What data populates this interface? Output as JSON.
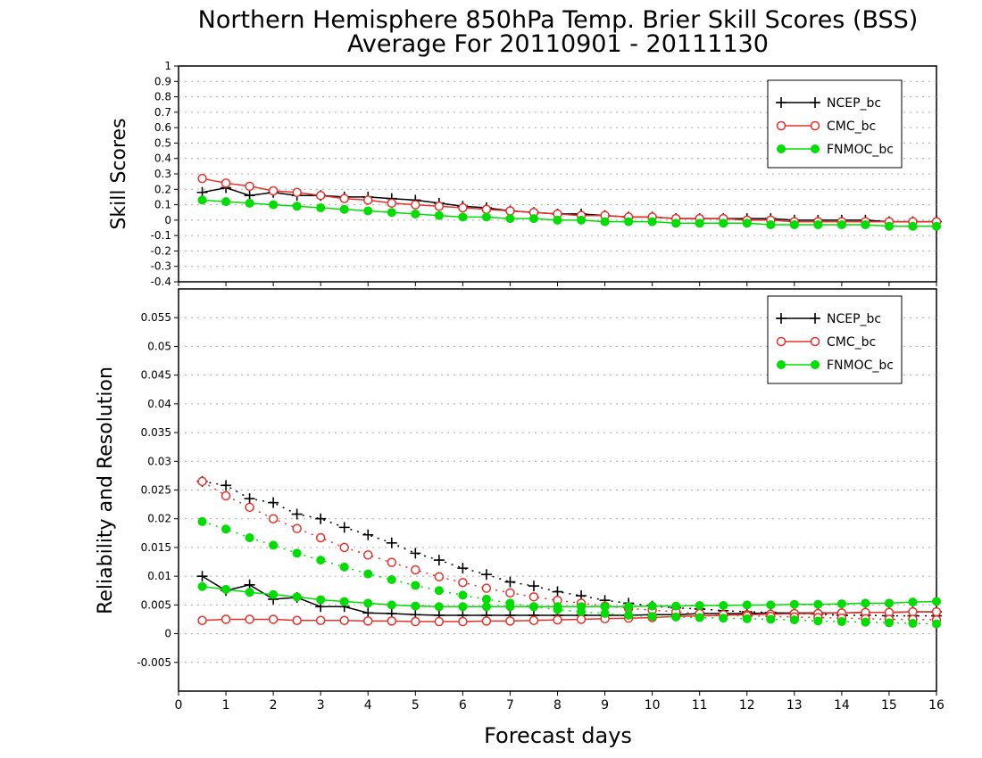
{
  "title_line1": "Northern Hemisphere 850hPa Temp. Brier Skill Scores (BSS)",
  "title_line2": "Average For 20110901 - 20111130",
  "xlabel": "Forecast days",
  "colors": {
    "NCEP_bc": "#000000",
    "CMC_bc": "#e8302a",
    "FNMOC_bc": "#00dd00"
  },
  "chart_data": [
    {
      "type": "line",
      "panel": "top",
      "ylabel": "Skill Scores",
      "ylim": [
        -0.4,
        1.0
      ],
      "xlim": [
        0,
        16
      ],
      "yticks": [
        "-0.4",
        "-0.3",
        "-0.2",
        "-0.1",
        "0",
        "0.1",
        "0.2",
        "0.3",
        "0.4",
        "0.5",
        "0.6",
        "0.7",
        "0.8",
        "0.9",
        "1"
      ],
      "xticks": [
        "0",
        "1",
        "2",
        "3",
        "4",
        "5",
        "6",
        "7",
        "8",
        "9",
        "10",
        "11",
        "12",
        "13",
        "14",
        "15",
        "16"
      ],
      "grid": true,
      "legend_position": "top-right",
      "x": [
        0.5,
        1,
        1.5,
        2,
        2.5,
        3,
        3.5,
        4,
        4.5,
        5,
        5.5,
        6,
        6.5,
        7,
        7.5,
        8,
        8.5,
        9,
        9.5,
        10,
        10.5,
        11,
        11.5,
        12,
        12.5,
        13,
        13.5,
        14,
        14.5,
        15,
        15.5,
        16
      ],
      "series": [
        {
          "name": "NCEP_bc",
          "style": "solid",
          "marker": "plus",
          "values": [
            0.18,
            0.21,
            0.16,
            0.18,
            0.16,
            0.16,
            0.15,
            0.15,
            0.14,
            0.13,
            0.11,
            0.09,
            0.08,
            0.06,
            0.05,
            0.04,
            0.04,
            0.03,
            0.02,
            0.02,
            0.01,
            0.01,
            0.01,
            0.01,
            0.01,
            0.0,
            0.0,
            0.0,
            0.0,
            -0.01,
            -0.01,
            -0.01
          ]
        },
        {
          "name": "CMC_bc",
          "style": "solid",
          "marker": "open-circle",
          "values": [
            0.27,
            0.24,
            0.22,
            0.19,
            0.18,
            0.16,
            0.14,
            0.13,
            0.11,
            0.1,
            0.09,
            0.08,
            0.07,
            0.06,
            0.05,
            0.04,
            0.03,
            0.03,
            0.02,
            0.02,
            0.01,
            0.01,
            0.01,
            0.0,
            0.0,
            -0.01,
            -0.01,
            -0.01,
            -0.01,
            -0.01,
            -0.01,
            -0.01
          ]
        },
        {
          "name": "FNMOC_bc",
          "style": "solid",
          "marker": "filled-circle",
          "values": [
            0.13,
            0.12,
            0.11,
            0.1,
            0.09,
            0.08,
            0.07,
            0.06,
            0.05,
            0.04,
            0.03,
            0.02,
            0.02,
            0.01,
            0.01,
            0.0,
            0.0,
            -0.01,
            -0.01,
            -0.01,
            -0.02,
            -0.02,
            -0.02,
            -0.02,
            -0.03,
            -0.03,
            -0.03,
            -0.03,
            -0.03,
            -0.04,
            -0.04,
            -0.04
          ]
        }
      ]
    },
    {
      "type": "line",
      "panel": "bottom",
      "ylabel": "Reliability and Resolution",
      "ylim": [
        -0.01,
        0.06
      ],
      "xlim": [
        0,
        16
      ],
      "yticks": [
        "-0.005",
        "0",
        "0.005",
        "0.01",
        "0.015",
        "0.02",
        "0.025",
        "0.03",
        "0.035",
        "0.04",
        "0.045",
        "0.05",
        "0.055"
      ],
      "xticks": [
        "0",
        "1",
        "2",
        "3",
        "4",
        "5",
        "6",
        "7",
        "8",
        "9",
        "10",
        "11",
        "12",
        "13",
        "14",
        "15",
        "16"
      ],
      "grid": true,
      "legend_position": "top-right",
      "x": [
        0.5,
        1,
        1.5,
        2,
        2.5,
        3,
        3.5,
        4,
        4.5,
        5,
        5.5,
        6,
        6.5,
        7,
        7.5,
        8,
        8.5,
        9,
        9.5,
        10,
        10.5,
        11,
        11.5,
        12,
        12.5,
        13,
        13.5,
        14,
        14.5,
        15,
        15.5,
        16
      ],
      "series": [
        {
          "name": "NCEP_bc",
          "metric": "reliability",
          "style": "solid",
          "marker": "plus",
          "values": [
            0.01,
            0.0075,
            0.0085,
            0.006,
            0.0063,
            0.0047,
            0.0047,
            0.0036,
            0.0035,
            0.0033,
            0.0032,
            0.0032,
            0.0032,
            0.0032,
            0.0032,
            0.0032,
            0.0032,
            0.0032,
            0.0032,
            0.0033,
            0.0033,
            0.0035,
            0.0035,
            0.0035,
            0.0036,
            0.0036,
            0.0036,
            0.0036,
            0.0037,
            0.0037,
            0.0038,
            0.0038
          ]
        },
        {
          "name": "NCEP_bc",
          "metric": "resolution",
          "style": "dotted",
          "marker": "plus",
          "values": [
            0.0265,
            0.0258,
            0.0235,
            0.0228,
            0.0208,
            0.02,
            0.0185,
            0.0172,
            0.0158,
            0.014,
            0.0128,
            0.0114,
            0.0103,
            0.009,
            0.0083,
            0.0073,
            0.0066,
            0.0058,
            0.0053,
            0.0048,
            0.0045,
            0.0043,
            0.004,
            0.0038,
            0.0037,
            0.0035,
            0.0034,
            0.0032,
            0.0032,
            0.0031,
            0.0031,
            0.0031
          ]
        },
        {
          "name": "CMC_bc",
          "metric": "reliability",
          "style": "solid",
          "marker": "open-circle",
          "values": [
            0.0023,
            0.0025,
            0.0025,
            0.0025,
            0.0023,
            0.0023,
            0.0023,
            0.0022,
            0.0022,
            0.0021,
            0.0021,
            0.0021,
            0.0022,
            0.0022,
            0.0023,
            0.0024,
            0.0025,
            0.0026,
            0.0027,
            0.0028,
            0.003,
            0.0031,
            0.0032,
            0.0033,
            0.0034,
            0.0035,
            0.0035,
            0.0036,
            0.0037,
            0.0037,
            0.0038,
            0.0038
          ]
        },
        {
          "name": "CMC_bc",
          "metric": "resolution",
          "style": "dotted",
          "marker": "open-circle",
          "values": [
            0.0265,
            0.024,
            0.022,
            0.02,
            0.0183,
            0.0167,
            0.015,
            0.0137,
            0.0124,
            0.0111,
            0.0099,
            0.0089,
            0.0079,
            0.0071,
            0.0064,
            0.0058,
            0.0053,
            0.0048,
            0.0044,
            0.0041,
            0.0038,
            0.0035,
            0.0033,
            0.0031,
            0.003,
            0.0029,
            0.0028,
            0.0027,
            0.0026,
            0.0025,
            0.0025,
            0.0024
          ]
        },
        {
          "name": "FNMOC_bc",
          "metric": "reliability",
          "style": "solid",
          "marker": "filled-circle",
          "values": [
            0.0082,
            0.0077,
            0.0072,
            0.0068,
            0.0064,
            0.0059,
            0.0056,
            0.0053,
            0.005,
            0.0048,
            0.0047,
            0.0047,
            0.0047,
            0.0047,
            0.0047,
            0.0047,
            0.0047,
            0.0047,
            0.0047,
            0.0048,
            0.0048,
            0.0049,
            0.0049,
            0.005,
            0.005,
            0.0051,
            0.0051,
            0.0052,
            0.0053,
            0.0053,
            0.0055,
            0.0056
          ]
        },
        {
          "name": "FNMOC_bc",
          "metric": "resolution",
          "style": "dotted",
          "marker": "filled-circle",
          "values": [
            0.0195,
            0.0182,
            0.0167,
            0.0154,
            0.014,
            0.0128,
            0.0116,
            0.0104,
            0.0094,
            0.0084,
            0.0075,
            0.0067,
            0.006,
            0.0053,
            0.0047,
            0.0042,
            0.0038,
            0.0035,
            0.0032,
            0.003,
            0.0029,
            0.0028,
            0.0027,
            0.0026,
            0.0025,
            0.0024,
            0.0022,
            0.0021,
            0.002,
            0.0019,
            0.0018,
            0.0017
          ]
        }
      ]
    }
  ]
}
